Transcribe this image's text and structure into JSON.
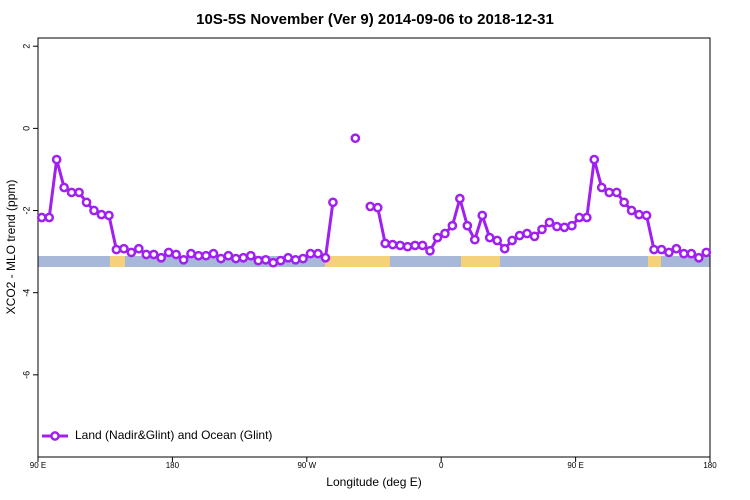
{
  "chart_data": {
    "type": "line",
    "title": "10S-5S November (Ver 9)   2014-09-06 to 2018-12-31",
    "x_label": "Longitude (deg E)",
    "y_label": "XCO2 - MLO trend (ppm)",
    "xlim": [
      90,
      540
    ],
    "ylim": [
      -8,
      2.2
    ],
    "xticks": [
      {
        "value": 90,
        "label": "90 E"
      },
      {
        "value": 180,
        "label": "180"
      },
      {
        "value": 270,
        "label": "90 W"
      },
      {
        "value": 360,
        "label": "0"
      },
      {
        "value": 450,
        "label": "90 E"
      },
      {
        "value": 540,
        "label": "180"
      }
    ],
    "yticks": [
      2,
      0,
      -2,
      -4,
      -6
    ],
    "legend_position": "bottom-left",
    "x": [
      92.5,
      97.5,
      102.5,
      107.5,
      112.5,
      117.5,
      122.5,
      127.5,
      132.5,
      137.5,
      142.5,
      147.5,
      152.5,
      157.5,
      162.5,
      167.5,
      172.5,
      177.5,
      182.5,
      187.5,
      192.5,
      197.5,
      202.5,
      207.5,
      212.5,
      217.5,
      222.5,
      227.5,
      232.5,
      237.5,
      242.5,
      247.5,
      252.5,
      257.5,
      262.5,
      267.5,
      272.5,
      277.5,
      282.5,
      287.5,
      292.5,
      297.5,
      302.5,
      307.5,
      312.5,
      317.5,
      322.5,
      327.5,
      332.5,
      337.5,
      342.5,
      347.5,
      352.5,
      357.5,
      362.5,
      367.5,
      372.5,
      377.5,
      382.5,
      387.5,
      392.5,
      397.5,
      402.5,
      407.5,
      412.5,
      417.5,
      422.5,
      427.5,
      432.5,
      437.5,
      442.5,
      447.5,
      452.5,
      457.5,
      462.5,
      467.5,
      472.5,
      477.5,
      482.5,
      487.5,
      492.5,
      497.5,
      502.5,
      507.5,
      512.5,
      517.5,
      522.5,
      527.5,
      532.5,
      537.5
    ],
    "series": [
      {
        "name": "Land (Nadir&Glint) and Ocean (Glint)",
        "color": "#a020f0",
        "values": [
          -2.17,
          -2.17,
          -0.76,
          -1.44,
          -1.56,
          -1.56,
          -1.8,
          -2.0,
          -2.1,
          -2.12,
          -2.95,
          -2.93,
          -3.02,
          -2.93,
          -3.07,
          -3.07,
          -3.15,
          -3.02,
          -3.07,
          -3.2,
          -3.05,
          -3.1,
          -3.1,
          -3.05,
          -3.17,
          -3.1,
          -3.17,
          -3.15,
          -3.1,
          -3.22,
          -3.2,
          -3.27,
          -3.22,
          -3.15,
          -3.2,
          -3.17,
          -3.05,
          -3.05,
          -3.15,
          -1.8,
          null,
          null,
          -0.24,
          null,
          -1.9,
          -1.93,
          -2.8,
          -2.83,
          -2.85,
          -2.88,
          -2.85,
          -2.85,
          -2.98,
          -2.66,
          -2.56,
          -2.37,
          -1.71,
          -2.37,
          -2.71,
          -2.12,
          -2.66,
          -2.73,
          -2.93,
          -2.73,
          -2.61,
          -2.56,
          -2.63,
          -2.46,
          -2.29,
          -2.39,
          -2.41,
          -2.37,
          -2.17,
          -2.17,
          -0.76,
          -1.44,
          -1.56,
          -1.56,
          -1.8,
          -2.0,
          -2.1,
          -2.12,
          -2.95,
          -2.95,
          -3.02,
          -2.93,
          -3.05,
          -3.05,
          -3.15,
          -3.02
        ]
      }
    ]
  }
}
